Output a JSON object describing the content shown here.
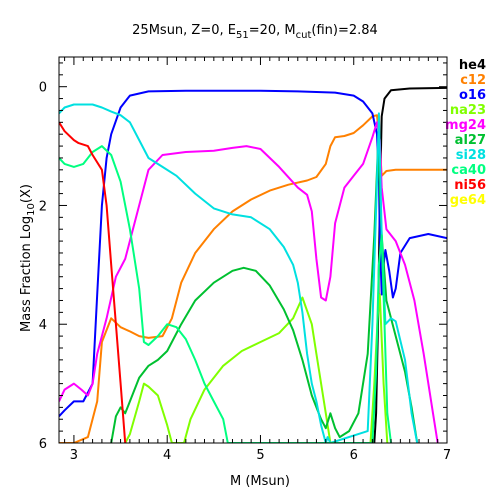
{
  "chart_data": {
    "type": "line",
    "title_parts": {
      "prefix": "25Msun, Z=0, E",
      "sub1": "51",
      "mid": "=20, M",
      "sub2": "cut",
      "suffix": "(fin)=2.84"
    },
    "xlabel": "M (Msun)",
    "ylabel_parts": {
      "prefix": "Mass Fraction Log",
      "sub": "10",
      "suffix": "(X)"
    },
    "xlim": [
      2.84,
      7.0
    ],
    "ylim": [
      -6,
      0.5
    ],
    "x_ticks": [
      3,
      4,
      5,
      6,
      7
    ],
    "y_ticks": [
      0,
      -2,
      -4,
      -6
    ],
    "y_tick_labels": [
      "0",
      "2",
      "4",
      "6"
    ],
    "legend_position": "outside-right",
    "series": [
      {
        "name": "he4",
        "color": "#000000",
        "points": [
          [
            6.22,
            -6
          ],
          [
            6.24,
            -5.5
          ],
          [
            6.26,
            -4
          ],
          [
            6.28,
            -2
          ],
          [
            6.3,
            -0.5
          ],
          [
            6.33,
            -0.2
          ],
          [
            6.4,
            -0.06
          ],
          [
            6.6,
            -0.03
          ],
          [
            7.0,
            -0.02
          ]
        ]
      },
      {
        "name": "c12",
        "color": "#ff8000",
        "points": [
          [
            2.84,
            -6.0
          ],
          [
            3.0,
            -6.0
          ],
          [
            3.15,
            -5.9
          ],
          [
            3.25,
            -5.3
          ],
          [
            3.3,
            -4.3
          ],
          [
            3.4,
            -3.9
          ],
          [
            3.5,
            -4.05
          ],
          [
            3.6,
            -4.12
          ],
          [
            3.7,
            -4.2
          ],
          [
            3.8,
            -4.23
          ],
          [
            3.95,
            -4.2
          ],
          [
            4.05,
            -3.9
          ],
          [
            4.15,
            -3.3
          ],
          [
            4.3,
            -2.8
          ],
          [
            4.5,
            -2.4
          ],
          [
            4.7,
            -2.1
          ],
          [
            4.9,
            -1.9
          ],
          [
            5.1,
            -1.75
          ],
          [
            5.3,
            -1.65
          ],
          [
            5.5,
            -1.58
          ],
          [
            5.6,
            -1.52
          ],
          [
            5.7,
            -1.3
          ],
          [
            5.75,
            -1.0
          ],
          [
            5.8,
            -0.85
          ],
          [
            5.9,
            -0.83
          ],
          [
            6.0,
            -0.78
          ],
          [
            6.1,
            -0.65
          ],
          [
            6.2,
            -0.5
          ],
          [
            6.25,
            -0.48
          ],
          [
            6.28,
            -1.0
          ],
          [
            6.3,
            -1.5
          ],
          [
            6.35,
            -1.42
          ],
          [
            6.45,
            -1.4
          ],
          [
            6.6,
            -1.4
          ],
          [
            7.0,
            -1.4
          ]
        ]
      },
      {
        "name": "o16",
        "color": "#0000ff",
        "points": [
          [
            2.84,
            -5.55
          ],
          [
            2.9,
            -5.45
          ],
          [
            3.0,
            -5.3
          ],
          [
            3.1,
            -5.3
          ],
          [
            3.2,
            -5.0
          ],
          [
            3.25,
            -3.5
          ],
          [
            3.3,
            -2.0
          ],
          [
            3.35,
            -1.2
          ],
          [
            3.4,
            -0.8
          ],
          [
            3.5,
            -0.35
          ],
          [
            3.6,
            -0.15
          ],
          [
            3.8,
            -0.08
          ],
          [
            4.2,
            -0.07
          ],
          [
            5.0,
            -0.07
          ],
          [
            5.4,
            -0.08
          ],
          [
            5.8,
            -0.1
          ],
          [
            6.0,
            -0.15
          ],
          [
            6.1,
            -0.25
          ],
          [
            6.2,
            -0.45
          ],
          [
            6.25,
            -0.8
          ],
          [
            6.27,
            -1.5
          ],
          [
            6.28,
            -2.5
          ],
          [
            6.3,
            -3.5
          ],
          [
            6.32,
            -3.0
          ],
          [
            6.34,
            -2.75
          ],
          [
            6.38,
            -3.1
          ],
          [
            6.42,
            -3.55
          ],
          [
            6.45,
            -3.4
          ],
          [
            6.5,
            -2.8
          ],
          [
            6.6,
            -2.55
          ],
          [
            6.8,
            -2.48
          ],
          [
            7.0,
            -2.55
          ]
        ]
      },
      {
        "name": "na23",
        "color": "#80ff00",
        "points": [
          [
            3.55,
            -6.0
          ],
          [
            3.6,
            -5.85
          ],
          [
            3.7,
            -5.3
          ],
          [
            3.75,
            -5.0
          ],
          [
            3.8,
            -5.05
          ],
          [
            3.9,
            -5.2
          ],
          [
            4.0,
            -5.7
          ],
          [
            4.05,
            -6.0
          ],
          [
            4.18,
            -6.0
          ],
          [
            4.25,
            -5.6
          ],
          [
            4.4,
            -5.1
          ],
          [
            4.6,
            -4.7
          ],
          [
            4.8,
            -4.45
          ],
          [
            5.0,
            -4.3
          ],
          [
            5.2,
            -4.15
          ],
          [
            5.35,
            -3.9
          ],
          [
            5.45,
            -3.55
          ],
          [
            5.55,
            -4.0
          ],
          [
            5.6,
            -4.5
          ],
          [
            5.65,
            -5.0
          ],
          [
            5.7,
            -5.5
          ],
          [
            5.75,
            -6.0
          ],
          [
            6.18,
            -6.0
          ],
          [
            6.22,
            -5.0
          ],
          [
            6.26,
            -3.8
          ],
          [
            6.28,
            -3.5
          ],
          [
            6.32,
            -5.0
          ],
          [
            6.36,
            -6.0
          ]
        ]
      },
      {
        "name": "mg24",
        "color": "#ff00ff",
        "points": [
          [
            2.84,
            -5.3
          ],
          [
            2.9,
            -5.1
          ],
          [
            3.0,
            -5.0
          ],
          [
            3.08,
            -5.1
          ],
          [
            3.15,
            -5.2
          ],
          [
            3.2,
            -5.0
          ],
          [
            3.25,
            -4.5
          ],
          [
            3.35,
            -3.9
          ],
          [
            3.45,
            -3.2
          ],
          [
            3.55,
            -2.9
          ],
          [
            3.65,
            -2.3
          ],
          [
            3.8,
            -1.4
          ],
          [
            3.95,
            -1.15
          ],
          [
            4.2,
            -1.1
          ],
          [
            4.5,
            -1.08
          ],
          [
            4.7,
            -1.03
          ],
          [
            4.85,
            -1.0
          ],
          [
            5.0,
            -1.05
          ],
          [
            5.2,
            -1.35
          ],
          [
            5.4,
            -1.7
          ],
          [
            5.5,
            -1.82
          ],
          [
            5.55,
            -2.1
          ],
          [
            5.6,
            -2.9
          ],
          [
            5.65,
            -3.55
          ],
          [
            5.7,
            -3.6
          ],
          [
            5.75,
            -3.2
          ],
          [
            5.8,
            -2.3
          ],
          [
            5.9,
            -1.7
          ],
          [
            6.0,
            -1.5
          ],
          [
            6.1,
            -1.3
          ],
          [
            6.2,
            -0.85
          ],
          [
            6.25,
            -0.6
          ],
          [
            6.28,
            -0.9
          ],
          [
            6.3,
            -1.7
          ],
          [
            6.35,
            -2.4
          ],
          [
            6.45,
            -2.6
          ],
          [
            6.55,
            -3.0
          ],
          [
            6.65,
            -3.6
          ],
          [
            6.75,
            -4.5
          ],
          [
            6.85,
            -5.5
          ],
          [
            6.9,
            -6.0
          ]
        ]
      },
      {
        "name": "al27",
        "color": "#00c030",
        "points": [
          [
            3.4,
            -6.0
          ],
          [
            3.45,
            -5.55
          ],
          [
            3.5,
            -5.4
          ],
          [
            3.55,
            -5.5
          ],
          [
            3.6,
            -5.3
          ],
          [
            3.7,
            -4.9
          ],
          [
            3.8,
            -4.7
          ],
          [
            3.9,
            -4.6
          ],
          [
            4.0,
            -4.45
          ],
          [
            4.15,
            -4.0
          ],
          [
            4.3,
            -3.6
          ],
          [
            4.5,
            -3.3
          ],
          [
            4.7,
            -3.1
          ],
          [
            4.82,
            -3.05
          ],
          [
            4.95,
            -3.1
          ],
          [
            5.1,
            -3.35
          ],
          [
            5.25,
            -3.75
          ],
          [
            5.35,
            -4.1
          ],
          [
            5.45,
            -4.6
          ],
          [
            5.55,
            -5.2
          ],
          [
            5.65,
            -5.6
          ],
          [
            5.7,
            -5.75
          ],
          [
            5.75,
            -5.5
          ],
          [
            5.8,
            -5.75
          ],
          [
            5.85,
            -5.9
          ],
          [
            5.95,
            -5.8
          ],
          [
            6.05,
            -5.5
          ],
          [
            6.15,
            -4.5
          ],
          [
            6.22,
            -2.5
          ],
          [
            6.26,
            -1.0
          ],
          [
            6.3,
            -2.5
          ],
          [
            6.35,
            -3.6
          ],
          [
            6.45,
            -4.2
          ],
          [
            6.55,
            -4.8
          ],
          [
            6.62,
            -5.4
          ],
          [
            6.68,
            -6.0
          ]
        ]
      },
      {
        "name": "si28",
        "color": "#00e0e0",
        "points": [
          [
            2.84,
            -0.45
          ],
          [
            2.9,
            -0.35
          ],
          [
            3.0,
            -0.3
          ],
          [
            3.1,
            -0.3
          ],
          [
            3.2,
            -0.3
          ],
          [
            3.3,
            -0.35
          ],
          [
            3.4,
            -0.42
          ],
          [
            3.5,
            -0.48
          ],
          [
            3.6,
            -0.6
          ],
          [
            3.7,
            -0.9
          ],
          [
            3.8,
            -1.2
          ],
          [
            3.95,
            -1.35
          ],
          [
            4.1,
            -1.5
          ],
          [
            4.3,
            -1.8
          ],
          [
            4.5,
            -2.05
          ],
          [
            4.7,
            -2.15
          ],
          [
            4.9,
            -2.2
          ],
          [
            5.1,
            -2.4
          ],
          [
            5.25,
            -2.7
          ],
          [
            5.35,
            -3.0
          ],
          [
            5.4,
            -3.3
          ],
          [
            5.45,
            -3.8
          ],
          [
            5.5,
            -4.5
          ],
          [
            5.55,
            -5.0
          ],
          [
            5.6,
            -5.3
          ],
          [
            5.65,
            -5.7
          ],
          [
            5.7,
            -6.0
          ],
          [
            5.72,
            -5.9
          ],
          [
            5.75,
            -6.0
          ],
          [
            6.15,
            -5.8
          ],
          [
            6.2,
            -4.0
          ],
          [
            6.25,
            -1.6
          ],
          [
            6.27,
            -0.45
          ],
          [
            6.3,
            -2.5
          ],
          [
            6.34,
            -4.0
          ],
          [
            6.4,
            -3.9
          ],
          [
            6.45,
            -3.95
          ],
          [
            6.55,
            -4.6
          ],
          [
            6.62,
            -5.5
          ],
          [
            6.68,
            -6.0
          ]
        ]
      },
      {
        "name": "ca40",
        "color": "#00ff80",
        "points": [
          [
            2.84,
            -1.2
          ],
          [
            2.9,
            -1.3
          ],
          [
            3.0,
            -1.35
          ],
          [
            3.1,
            -1.3
          ],
          [
            3.2,
            -1.1
          ],
          [
            3.3,
            -1.0
          ],
          [
            3.4,
            -1.15
          ],
          [
            3.5,
            -1.6
          ],
          [
            3.6,
            -2.4
          ],
          [
            3.7,
            -3.4
          ],
          [
            3.75,
            -4.3
          ],
          [
            3.8,
            -4.35
          ],
          [
            3.9,
            -4.2
          ],
          [
            4.0,
            -4.0
          ],
          [
            4.1,
            -4.05
          ],
          [
            4.2,
            -4.25
          ],
          [
            4.3,
            -4.6
          ],
          [
            4.4,
            -5.0
          ],
          [
            4.5,
            -5.3
          ],
          [
            4.6,
            -5.6
          ],
          [
            4.65,
            -6.0
          ],
          [
            6.2,
            -6.0
          ],
          [
            6.24,
            -4.8
          ],
          [
            6.27,
            -3.0
          ],
          [
            6.3,
            -2.5
          ],
          [
            6.33,
            -4.0
          ],
          [
            6.36,
            -5.5
          ],
          [
            6.4,
            -6.0
          ]
        ]
      },
      {
        "name": "ni56",
        "color": "#ff0000",
        "points": [
          [
            2.84,
            -0.6
          ],
          [
            2.9,
            -0.75
          ],
          [
            3.0,
            -0.9
          ],
          [
            3.05,
            -0.95
          ],
          [
            3.15,
            -1.0
          ],
          [
            3.2,
            -1.15
          ],
          [
            3.3,
            -1.4
          ],
          [
            3.35,
            -2.0
          ],
          [
            3.4,
            -3.0
          ],
          [
            3.45,
            -4.0
          ],
          [
            3.5,
            -5.0
          ],
          [
            3.55,
            -6.0
          ]
        ]
      },
      {
        "name": "ge64",
        "color": "#ffff00",
        "points": []
      }
    ]
  }
}
